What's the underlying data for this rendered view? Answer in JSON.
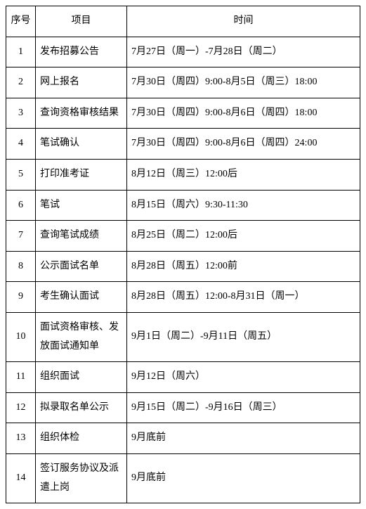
{
  "table": {
    "columns": [
      "序号",
      "项目",
      "时间"
    ],
    "col_widths": [
      "42px",
      "130px",
      "auto"
    ],
    "border_color": "#000000",
    "background_color": "#ffffff",
    "font_family": "SimSun",
    "font_size": 14,
    "line_height": 1.9,
    "text_color": "#000000",
    "rows": [
      {
        "num": "1",
        "item": "发布招募公告",
        "time": "7月27日（周一）-7月28日（周二）"
      },
      {
        "num": "2",
        "item": "网上报名",
        "time": "7月30日（周四）9:00-8月5日（周三）18:00"
      },
      {
        "num": "3",
        "item": "查询资格审核结果",
        "time": "7月30日（周四）9:00-8月6日（周四）18:00"
      },
      {
        "num": "4",
        "item": "笔试确认",
        "time": "7月30日（周四）9:00-8月6日（周四）24:00"
      },
      {
        "num": "5",
        "item": "打印准考证",
        "time": "8月12日（周三）12:00后"
      },
      {
        "num": "6",
        "item": "笔试",
        "time": "8月15日（周六）9:30-11:30"
      },
      {
        "num": "7",
        "item": "查询笔试成绩",
        "time": "8月25日（周二）12:00后"
      },
      {
        "num": "8",
        "item": "公示面试名单",
        "time": "8月28日（周五）12:00前"
      },
      {
        "num": "9",
        "item": "考生确认面试",
        "time": "8月28日（周五）12:00-8月31日（周一）"
      },
      {
        "num": "10",
        "item": "面试资格审核、发放面试通知单",
        "time": "9月1日（周二）-9月11日（周五）"
      },
      {
        "num": "11",
        "item": "组织面试",
        "time": "9月12日（周六）"
      },
      {
        "num": "12",
        "item": "拟录取名单公示",
        "time": "9月15日（周二）-9月16日（周三）"
      },
      {
        "num": "13",
        "item": "组织体检",
        "time": "9月底前"
      },
      {
        "num": "14",
        "item": "签订服务协议及派遣上岗",
        "time": "9月底前"
      }
    ]
  }
}
